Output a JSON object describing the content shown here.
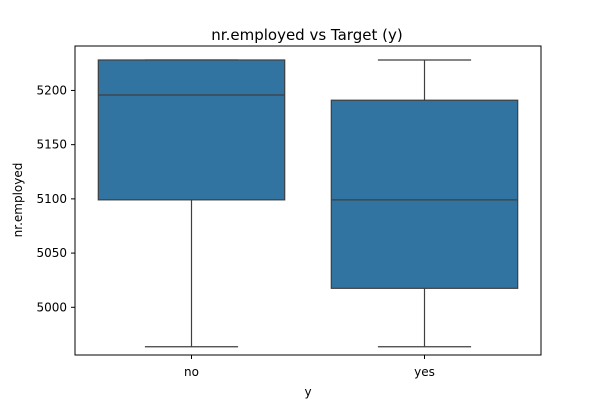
{
  "chart_data": {
    "type": "box",
    "title": "nr.employed vs Target (y)",
    "xlabel": "y",
    "ylabel": "nr.employed",
    "categories": [
      "no",
      "yes"
    ],
    "boxes": [
      {
        "category": "no",
        "whisker_low": 4963.6,
        "q1": 5099.1,
        "median": 5195.8,
        "q3": 5228.1,
        "whisker_high": 5228.1
      },
      {
        "category": "yes",
        "whisker_low": 4963.6,
        "q1": 5017.5,
        "median": 5099.1,
        "q3": 5191.0,
        "whisker_high": 5228.1
      }
    ],
    "yticks": [
      5000,
      5050,
      5100,
      5150,
      5200
    ],
    "ylim": [
      4956,
      5241
    ],
    "box_color": "#3274a1",
    "line_color": "#3f3f3f",
    "grid": false,
    "legend": false
  }
}
